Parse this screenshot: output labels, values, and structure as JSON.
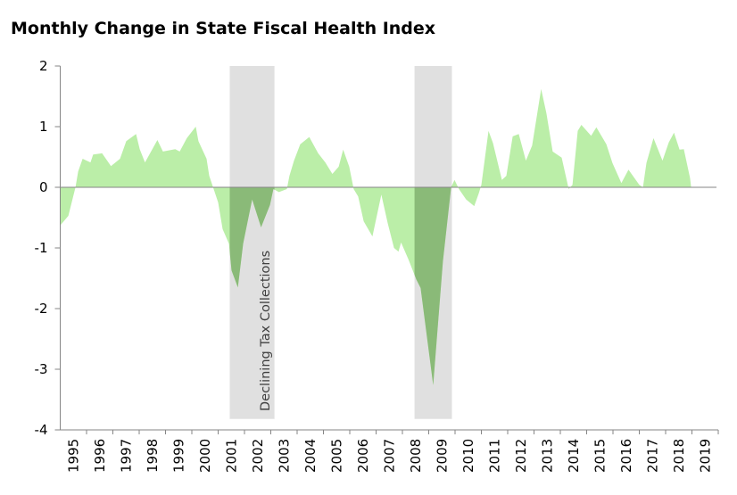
{
  "chart_data": {
    "type": "area",
    "title": "Monthly Change in State Fiscal Health Index",
    "xlabel": "",
    "ylabel": "",
    "ylim": [
      -4,
      2
    ],
    "yticks": [
      "2",
      "1",
      "0",
      "-1",
      "-2",
      "-3",
      "-4"
    ],
    "xlim": [
      1995,
      2020
    ],
    "xticks": [
      "1995",
      "1996",
      "1997",
      "1998",
      "1999",
      "2000",
      "2001",
      "2002",
      "2003",
      "2004",
      "2005",
      "2006",
      "2007",
      "2008",
      "2009",
      "2010",
      "2011",
      "2012",
      "2013",
      "2014",
      "2015",
      "2016",
      "2017",
      "2018",
      "2019"
    ],
    "grid": false,
    "x": [
      1995.0,
      1995.31,
      1995.58,
      1995.68,
      1995.85,
      1996.15,
      1996.25,
      1996.59,
      1996.93,
      1997.27,
      1997.51,
      1997.88,
      1998.02,
      1998.22,
      1998.69,
      1998.9,
      1999.37,
      1999.54,
      1999.81,
      2000.15,
      2000.25,
      2000.56,
      2000.66,
      2000.83,
      2001.0,
      2001.17,
      2001.41,
      2001.51,
      2001.75,
      2001.95,
      2002.29,
      2002.63,
      2002.97,
      2003.1,
      2003.31,
      2003.61,
      2003.71,
      2003.88,
      2004.12,
      2004.46,
      2004.8,
      2005.07,
      2005.34,
      2005.58,
      2005.75,
      2005.98,
      2006.15,
      2006.32,
      2006.53,
      2006.86,
      2007.2,
      2007.44,
      2007.68,
      2007.85,
      2007.95,
      2008.22,
      2008.53,
      2008.69,
      2009.17,
      2009.54,
      2009.85,
      2009.98,
      2010.15,
      2010.42,
      2010.73,
      2010.9,
      2011.0,
      2011.27,
      2011.44,
      2011.78,
      2011.95,
      2012.19,
      2012.42,
      2012.69,
      2012.93,
      2013.27,
      2013.47,
      2013.71,
      2014.05,
      2014.32,
      2014.46,
      2014.66,
      2014.8,
      2015.17,
      2015.37,
      2015.75,
      2015.98,
      2016.32,
      2016.59,
      2017.0,
      2017.14,
      2017.27,
      2017.54,
      2017.88,
      2018.12,
      2018.32,
      2018.53,
      2018.69,
      2018.93,
      2018.97
    ],
    "y": [
      -0.63,
      -0.47,
      0,
      0.26,
      0.47,
      0.41,
      0.54,
      0.56,
      0.35,
      0.47,
      0.76,
      0.88,
      0.63,
      0.41,
      0.78,
      0.59,
      0.63,
      0.59,
      0.81,
      1.0,
      0.76,
      0.47,
      0.19,
      -0.03,
      -0.25,
      -0.69,
      -0.93,
      -1.37,
      -1.65,
      -0.93,
      -0.2,
      -0.66,
      -0.29,
      -0.03,
      -0.08,
      -0.03,
      0.19,
      0.44,
      0.71,
      0.83,
      0.56,
      0.41,
      0.22,
      0.34,
      0.62,
      0.34,
      -0.03,
      -0.15,
      -0.56,
      -0.81,
      -0.12,
      -0.59,
      -1.0,
      -1.06,
      -0.91,
      -1.18,
      -1.52,
      -1.66,
      -3.26,
      -1.22,
      0,
      0.12,
      -0.03,
      -0.2,
      -0.31,
      -0.1,
      0.04,
      0.93,
      0.73,
      0.12,
      0.19,
      0.84,
      0.88,
      0.44,
      0.69,
      1.62,
      1.22,
      0.59,
      0.49,
      -0.03,
      0.04,
      0.93,
      1.03,
      0.85,
      0.99,
      0.71,
      0.4,
      0.07,
      0.29,
      0.04,
      0,
      0.4,
      0.81,
      0.44,
      0.74,
      0.9,
      0.62,
      0.63,
      0.15,
      0
    ],
    "highlight_periods": [
      {
        "start": 2001.44,
        "end": 2003.14
      },
      {
        "start": 2008.46,
        "end": 2009.88
      }
    ],
    "annotation": "Declining Tax Collections",
    "colors": {
      "area": "#bbeea8",
      "highlight_area": "#8aba78",
      "band": "#e0e0e0",
      "axis": "#868686"
    }
  }
}
